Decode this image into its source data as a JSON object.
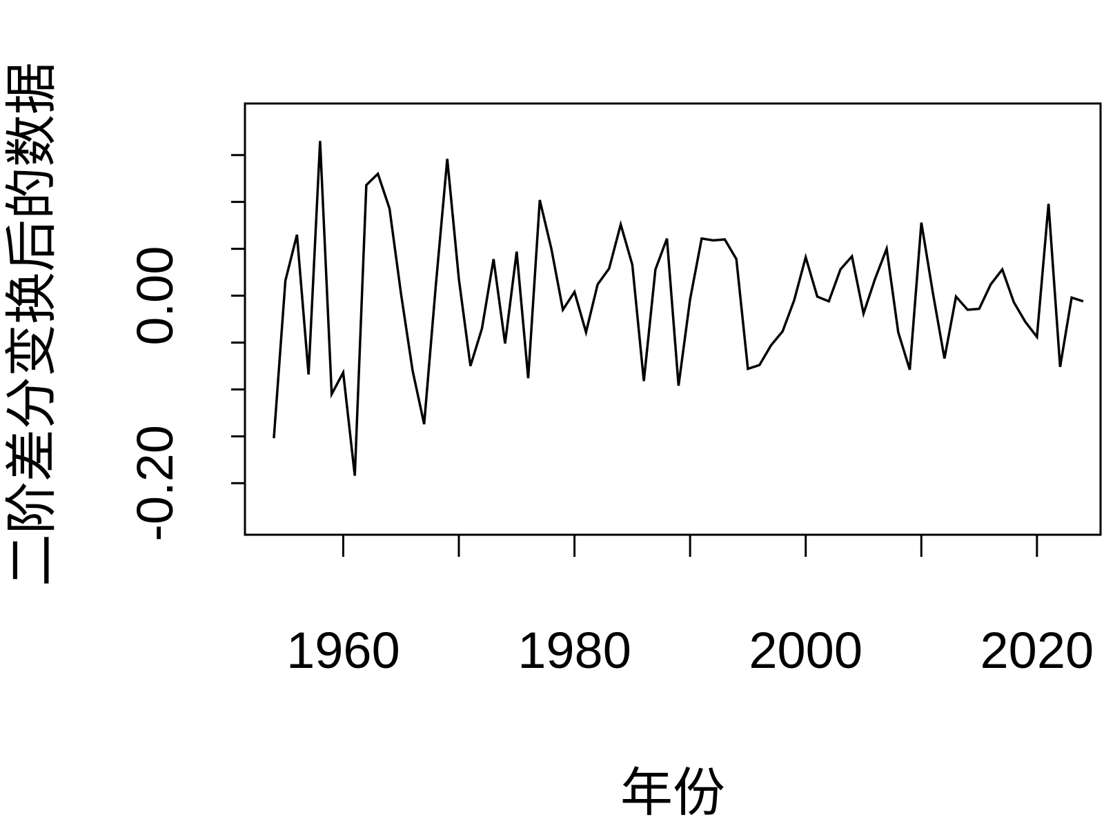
{
  "chart_data": {
    "type": "line",
    "title": "",
    "xlabel": "年份",
    "ylabel": "二阶差分变换后的数据",
    "xlim": [
      1951.5,
      2025.5
    ],
    "ylim": [
      -0.255,
      0.205
    ],
    "x_ticks": [
      1960,
      1980,
      2000,
      2020
    ],
    "x_tick_labels": [
      "1960",
      "1980",
      "2000",
      "2020"
    ],
    "y_ticks": [
      -0.2,
      -0.15,
      -0.1,
      -0.05,
      0.0,
      0.05,
      0.1,
      0.15
    ],
    "y_tick_labels": [
      "-0.20",
      "",
      "",
      "",
      "0.00",
      "",
      "",
      ""
    ],
    "grid": false,
    "legend": false,
    "line_color": "#000000",
    "series": [
      {
        "x": [
          1954,
          1955,
          1956,
          1957,
          1958,
          1959,
          1960,
          1961,
          1962,
          1963,
          1964,
          1965,
          1966,
          1967,
          1968,
          1969,
          1970,
          1971,
          1972,
          1973,
          1974,
          1975,
          1976,
          1977,
          1978,
          1979,
          1980,
          1981,
          1982,
          1983,
          1984,
          1985,
          1986,
          1987,
          1988,
          1989,
          1990,
          1991,
          1992,
          1993,
          1994,
          1995,
          1996,
          1997,
          1998,
          1999,
          2000,
          2001,
          2002,
          2003,
          2004,
          2005,
          2006,
          2007,
          2008,
          2009,
          2010,
          2011,
          2012,
          2013,
          2014,
          2015,
          2016,
          2017,
          2018,
          2019,
          2020,
          2021,
          2022,
          2023,
          2024
        ],
        "y": [
          -0.152,
          0.016,
          0.065,
          -0.084,
          0.165,
          -0.105,
          -0.082,
          -0.192,
          0.118,
          0.13,
          0.093,
          0.002,
          -0.08,
          -0.137,
          0.01,
          0.146,
          0.018,
          -0.075,
          -0.035,
          0.039,
          -0.051,
          0.047,
          -0.088,
          0.102,
          0.05,
          -0.015,
          0.004,
          -0.039,
          0.012,
          0.029,
          0.076,
          0.033,
          -0.091,
          0.028,
          0.061,
          -0.096,
          -0.004,
          0.061,
          0.059,
          0.06,
          0.039,
          -0.078,
          -0.074,
          -0.053,
          -0.038,
          -0.005,
          0.041,
          -0.001,
          -0.006,
          0.028,
          0.042,
          -0.019,
          0.018,
          0.05,
          -0.039,
          -0.079,
          0.078,
          0.003,
          -0.067,
          -0.001,
          -0.015,
          -0.014,
          0.012,
          0.028,
          -0.007,
          -0.028,
          -0.044,
          0.098,
          -0.076,
          -0.002,
          -0.006
        ]
      }
    ]
  }
}
